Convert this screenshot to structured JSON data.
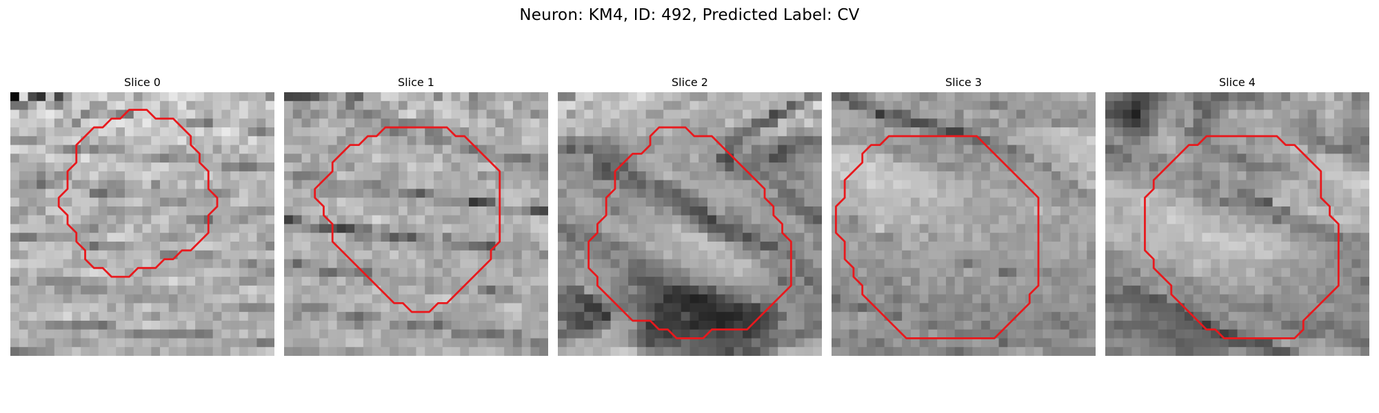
{
  "figure": {
    "title": "Neuron: KM4, ID: 492, Predicted Label: CV",
    "contour_color": "#e8191d"
  },
  "panels": [
    {
      "title": "Slice 0",
      "pixels": "CN9JL8NFmdLHzd2zs9GXuMXU5tPd1LrDxrWrtbmHcnOk06ODstbTmJrQ3sG50NmqvuOls7XFzLrYwbXc3KrK2+fWq8uAnrKfgHXQ1c+ivM/bu6XGr8nYu7e7y8fNxNSgwIXQ3NDd5dvB58i51auIjXK1t8aur5q/tcvCqsO0s7+8vNnSqNzPzL/Uz8HH3b3Z6dq2jXiVko6LocjFz9ihwaW+s8GztNLJzOCpt8G30Myv38DE3dTF0bOhhXecgJmSlbLCycW1oZ3EscSbwabRxbXHmbG7udnNyr7iwLjIsqaxn5F+jp2QmKu/qbqZpsHDtK6tnrLBqsG4utC+0cnEt9PXv8DBsrCvg4dzdpOUt6Chg6qOk8e61LWtqMfK2My7uqukrNK5qcO2u8e4qo2Wa46fxJeetJuMkKuuy4e6q8urzqnBra2+u6e8oaKkqMzBw8e6cmqPhaSsraOtrLGeoZCGj6XLuai3yKWbqaytpMfIxqO5u8bNs6mMl4qspqKuqcjOtrWxmpGqlM3Qy7nHrpyQlqOhl6i7xLaxta6trKmdl4mWlajEwJmxy8OpoKC0m7S8o8nNrbCKiWqjsJqNqbDDzL/Av7Wzs52Vgq2dsM+kyq7FqKW5maaoqKu9vayhgnN3nZWbmJ2quLDX1szBp6qYj5yhwrOtvcixxZqoqMm+uMi6xbOWbI+RjKKxs6O6vrPE0NDHwKevr6WEm6O/yMTHzKPDvce1qbq+wbCAfaWnjIqhubi2xLfF1cbOzMLCraGlrKm/srywzbeyuqejp6CxnrOTfaWYr6XCqq+nw7rN2dPDv6W+l6ipraevucfFwruvo5qEiqi5kIaJhoqjnqe+pbyitcDF2sTLp76nn6+Pj6WmubKho7qTjKSJiIyqnqKjlq2ftJ6ur7SjrKTK08G8prSorrGtmq+wp7qtrZWPm5ickauhrbu/yMKvxqvHvKyqvL22x8DAyL+bv6LAz7q+mqupsqC1oKGGg4ePrbnJucLH2LLMqL+5tKm+pZK1sL+6q7GWuK/Ep6mpu5uppImDjHh+fm6Mu8G60s3CvavGpKW3o6GkoLOyvMOks7OxrZ62wKudoY56hIaFfn+HdnyqvK3GqcSvqrusppSso5Kbpbi0wbevurCktL2pr6mynqGZm3Z8cX2GjpOws8WxrLi8rZ+wsJe9qa6coJqsocCtt8HMqcm7l36Mq52YkYmMtKKqnZSTva3C1b+2oaS1rLqknqa3rLOsn6y4vca8pqKvkJSjrayhq5eDlpC1ibChsLa8qqSUkq28uqmprJ6xoq6zua2lwbm5uq+3tLa4rZGYjqSVm6Kuv52MrJigmaSvu7qlvLqXg7DQwbKhhZqnu6i/rLK3uqyvvLirpq+hnJabr6mtrpmqtrmvsbe3k5upsLa/wLagi5KmtLWYvqCkpr6jr7S2waaRk56lo8GzpaibqraxvqSjt6mzpbGsr7SajZixu63Ao8KqpqK1pqWxwqSYlLCkvKyyq6GsuLW4uq2utaCcn6e7x6SzoK+pwqSnuKzBzLmtsLm7w6Cwpqq/v6uov8OmrL2epLqtpaWovaKps6vDtKC8p6iinJzBvMa+ubTGv8DCyMTAt7+3uKzDsrjAu66vsq2nqcC7r76oqa2ny7W+yLe+2MnOwKjQxM7Gwr7GrrK+uLbGuqazubLDs9LZxNG8uMG2sdHGssS/07rR1b/XvbTPqcS5pci2vcLGxLbCyrKfsri73su7t7y2ucjYsbzC3dbEvcStzM++w7+5w7HGzMrBtcnCrKbBtM66wr28wsTBzbnTy8PFy7TE1LfMvbbHvrXUu7S/xLu0yMe6wrrLqczBs8m4pbXBzdTCw9bR1MvKxq7Gwbq40b7Zxcm42bq/vMTAt8DDxczO2cvExNbJz7q8vsfRxsnQtb/Rxci9vMnGrbLCycbNvr2wub6ns8fJzsTEz8DOzcHCxs7Ry8+6w7/L0Ma0xr+4usbTwcG50LbFycrNvbuwrMjJv7++zw==",
      "outline": [
        [
          13.5,
          2
        ],
        [
          15.5,
          2
        ],
        [
          16.5,
          3
        ],
        [
          18.5,
          3
        ],
        [
          20.5,
          5
        ],
        [
          20.5,
          6
        ],
        [
          21.5,
          7
        ],
        [
          21.5,
          8
        ],
        [
          22.5,
          9
        ],
        [
          22.5,
          11
        ],
        [
          23.5,
          12
        ],
        [
          23.5,
          13
        ],
        [
          22.5,
          14
        ],
        [
          22.5,
          16
        ],
        [
          20.5,
          18
        ],
        [
          19.5,
          18
        ],
        [
          18.5,
          19
        ],
        [
          17.5,
          19
        ],
        [
          16.5,
          20
        ],
        [
          14.5,
          20
        ],
        [
          13.5,
          21
        ],
        [
          11.5,
          21
        ],
        [
          10.5,
          20
        ],
        [
          9.5,
          20
        ],
        [
          8.5,
          19
        ],
        [
          8.5,
          18
        ],
        [
          7.5,
          17
        ],
        [
          7.5,
          16
        ],
        [
          6.5,
          15
        ],
        [
          6.5,
          14
        ],
        [
          5.5,
          13
        ],
        [
          5.5,
          12
        ],
        [
          6.5,
          11
        ],
        [
          6.5,
          9
        ],
        [
          7.5,
          8
        ],
        [
          7.5,
          6
        ],
        [
          8.5,
          5
        ],
        [
          9.5,
          4
        ],
        [
          10.5,
          4
        ],
        [
          11.5,
          3
        ],
        [
          12.5,
          3
        ]
      ]
    },
    {
      "title": "Slice 1",
      "pixels": "Q0ZIV32ZsWxfrKzW0r+zrL6Cx6HEgZ+bs6ivoZiksJaTs6m6nXCjtq6aupPFy7XSzcKqiZqvu9GSprKwroSgiZq2ipqMeYadnM7bqpm/1MfFnLuUoMSnr4eapK6OpsKqq7qYl6iAkHyBjJO0s7PNtMq/k5uxwc6zo7i2vbzDvZKop52RdYWjs3qBraCQtbqixJ2mu7+6pqOfq7e7k6C2p8itpLCPq4V+h6aYo7iyp6KnzMe5vLusrKmSn7bDs7ioq7Wqu7iavqCHbIeVrq2ttbSqkJC+mrmkpKqnrM+/tLy6qqjGnbmwr5KYlXp2bJSJwLWcmKq1opC7sqqhmbHPvMXMs5eutsjKrZOjkZaAm3l6gZCcyb+zsrOXl6m8tryjrrCmuIyflaqop6CQvZGqq5SLlJ6Vh32WnLHBs8GvqbOnqLHDn7SmvqKqr7O8nZGRlpuUo42HoIF0V36foqqnsLOlvcbAvMOotaGoqb+szcC+sayvp7CbtKmUkYqNNEdhp8THsparoau7v8WlucLHp6aooMKgqr6xsbahsbqkmJKbhk5GPmegtZK7n7KmvNjHtqG6xqKsm5ykrrS0wKu/s8i5m5yPd1lWPEp7cqWOsJyjsay1xbe0qbG7p7eprsnMqcC7s6/CwJqBh5h5WXFWh5izeqafqq+htLeZn7XBs8DFp6mpuaerlri3nLKpmJKqk4SDbWlSnZuZn5W7taa7sqq6o63AwKOuyq2/rKKxnq+6tqaXkZ+RtqaFkmSOnaG4l5+nlquysLCrw6GSraa+vq+zprGhr6itmaafnHBohYt3bKWTpbOltaaymrW1tqC3rrqWqKi2tq3Ct5mtwaCwhqeqnJuXqJKfr5ytr6qzr6+6sb6+vauhqLWvnbOrscaonrm9tI+dqJ2ZtYNmlYWtu56kuKK1qbC0u7XAwaWvn6qmp8PIz625qrOnk5WYrKSipZKAf4Sjt7qgqbjCqbu1pKi2qKCnnZ6pu8vLq6SYp4mrlaaykHlphI6wr6StpLKMm6KioaiwrbjEpqmym6Ktuq/Anp2Bn6+wh5RvgIpliJmgpJyZp7u0paqgrayruaOysb23pb+gpqOcrJagtXl/iXlrc5h5o7Cqr6Kho7qxsMbIrLKgo7C1sqy2o5+gl6mgmpqAm3h/kY2Uk6mln4+Xo6yvm6ahv6qpvryluLm+tZ2WrI6BhbGzgq6Kcn1+hJGaoLeWl6Knpq+8ubHAuLGeqay3o6WSmY2ZjJbAnaSooJV/o4iOprOzl6OpsK2lrLOquZqSl7mxsqqqmJuBjZKpxJKyl5WUoJe0l4Kar6SmrpWfpJuQq6ejq6W0pp+sqImYa6GWt8ilmJSKh5iPqaGemZOTkq6qpZu6mpqipq2gmqSnmoqYoY+YoKKmoqSeb4aBgrXDhYB9tJWkh6Cwl4ulhZSxr6+4mq2Yl5qclJadsJi3pIq8qdKVmq62oqKQmJ+kmqqroZqZuZeUp52HmZCopLOnqcu7qJiTmavBwbXBqqOkrIuXp5+lkJSnnZ+cnKWyn6atsbKrnZyjn6WOh6q0ra+rtJKmraPJkqqopaSrrp2lsbi2wbG5op+Ml5+1n62jucrBt7Kmp7qvlJKulKmvtbnCvbXBoMOptMG3zNKbrqy2yazHwb2tpb2ovaGwoqrHs6/JwbXAvaHKvMOjqcy1ptLHvcnCv9Cjv7u4lqSmtLyhv7SXpbe6srjAr6ioucO+uKrCx7TUzrzGrqTDxdPUurWwt6ajpqOxtLO3q8PCsszBuq7HsLrCtMLBwce9y8DTs8/Nx62uuaKgnq6lrbyzuKS1rbe2zcfJy8C52ryvxMu5xZurw8SlpbaGj5aEsrecpbu7qbKzx7K/tbSwvMC6x8a5ybrD1Lujo6mRnYqAdnB+jaq+rLSymqaWtsW6w8S+rb2zyLy7wM63nJy2o8GhkIlodWWLm5yRo6SrnbKrubi7xce9yNXC2bDH2JyptaSRh5x6fWpaWVA=",
      "outline": [
        [
          11.5,
          4
        ],
        [
          18.5,
          4
        ],
        [
          19.5,
          5
        ],
        [
          20.5,
          5
        ],
        [
          21.5,
          6
        ],
        [
          22.5,
          7
        ],
        [
          23.5,
          8
        ],
        [
          24.5,
          9
        ],
        [
          24.5,
          17
        ],
        [
          23.5,
          18
        ],
        [
          23.5,
          19
        ],
        [
          22.5,
          20
        ],
        [
          21.5,
          21
        ],
        [
          20.5,
          22
        ],
        [
          19.5,
          23
        ],
        [
          18.5,
          24
        ],
        [
          17.5,
          24
        ],
        [
          16.5,
          25
        ],
        [
          14.5,
          25
        ],
        [
          13.5,
          24
        ],
        [
          12.5,
          24
        ],
        [
          11.5,
          23
        ],
        [
          9.5,
          21
        ],
        [
          8.5,
          20
        ],
        [
          7.5,
          19
        ],
        [
          6.5,
          18
        ],
        [
          5.5,
          17
        ],
        [
          5.5,
          15
        ],
        [
          4.5,
          14
        ],
        [
          4.5,
          13
        ],
        [
          3.5,
          12
        ],
        [
          3.5,
          11
        ],
        [
          4.5,
          10
        ],
        [
          5.5,
          9
        ],
        [
          5.5,
          8
        ],
        [
          6.5,
          7
        ],
        [
          7.5,
          6
        ],
        [
          8.5,
          6
        ],
        [
          9.5,
          5
        ],
        [
          10.5,
          5
        ]
      ]
    },
    {
      "title": "Slice 2",
      "pixels": "foLS2L62s7/Q4cu4wrmrmJa7rqatwsK3vLOvt3F/19zDpbTMu9POwLu6mZaqyrywrLS4r6+/p7Jcfa7d0ZS1zbfBy7auvZiXu7u/rqiisKuhyLGoRV2UyaqTwca8s67Dq7qstLWssa6YraKhmsWwnmVcaMe4qs+xvqXEr7Sin7KqvqStvKihmo6qqJh6bHu2t8WdjpqmlHiJgo2Bkp+pmpKQqJ+fmZ+hi21olZ+nlHt6bGVwdFeBX3h8dY+bl5Cqqaagq6SWmmN/n3eCeUtgdoZ+kJOQoGdsaXWLp7GunZ6Tt5WaU0SMgHV4S1N5kImNjYZ/mGNObVqEoKOtrZGXoKOTg1h/dG6JgX2Bj5ijjJiSjmdVW39cc5anu66qkpmXpI6Cbn1vhJqAeY+bpo2Qi5udlWxvXn1idoiqraenoqyhpZqXd3OUnYqZhqWkm4B9pY6IdoZnbF13i6eurquuo4+fo21piZqUmpqvq6WOjJKamYZ/dGdfa3iiqp6lqqKNfX5vc5iXk4+kq6GYd4+foKmJm3pfT0yOp4aUlKaclpZ9Z2RwiaGUl5WspJqSpaKgnqWRc1U/eIV8kaeanJ6olW1Ya3WCjZStprCdo6WvrsGjmXVbVlllhn+KlJyapoqFhmeGcW+KlqeuppqprbTDw8KMhVxrS2mNiXqGgqSJoIR2hoh/b3yPmrOqraSxscXCv6ebdnpUVoiFjJp/i4KjiX90ko+Fi5efuKatta6+rbmdl4WgiYBrhpydkZmFn5WOd5BvaX2Ak5atr6iuvbW/v6aIhpOUbnucjY2hmZqcloVoa3R0g36Kn6KosKy/ramljoSPaYB+lZGolJGahoNhVVNYbnhzj4yal6ikpqKilmR6k2J6fmNkqZmehHaMc1lVRjZCSWRUhHyGjJCOk4+HfJJzZGxKSHCQgntpZltXLzQtIiY6SV1weJmBh5KAj4aHbWlqOjltd3F6X1A4Q0ArMDAuPUA1SUBlYJSVinl6XFRGZVA1k5WBcGNEODVXOCooJCUpOjhEWGeWkXuCi11JRGp0p6GgbDU6PD43KTQyJDFBNjtLXJGXlHlvZHBzeYm1qqCCYEtGOkpDUEtPQEpSN0hdeXp/aXSAiJ2zqrKrqKGHZkpgWlRvYl1dVFdUW3VgZIF6kaSuqbOuuKy1xs3El4R5g3xxYGVgV0dsUlZwibK5tLK5r7WxtLyxq67AuL23rI6GeY6YgnKLmoWdoa6+sqOxtLy8uLe8raQ=",
      "outline": [
        [
          11.5,
          4
        ],
        [
          14.5,
          4
        ],
        [
          15.5,
          5
        ],
        [
          17.5,
          5
        ],
        [
          18.5,
          6
        ],
        [
          19.5,
          7
        ],
        [
          20.5,
          8
        ],
        [
          21.5,
          9
        ],
        [
          22.5,
          10
        ],
        [
          23.5,
          11
        ],
        [
          23.5,
          12
        ],
        [
          24.5,
          13
        ],
        [
          24.5,
          14
        ],
        [
          25.5,
          15
        ],
        [
          25.5,
          16
        ],
        [
          26.5,
          17
        ],
        [
          26.5,
          22
        ],
        [
          25.5,
          23
        ],
        [
          24.5,
          24
        ],
        [
          23.5,
          25
        ],
        [
          22.5,
          26
        ],
        [
          21.5,
          27
        ],
        [
          17.5,
          27
        ],
        [
          16.5,
          28
        ],
        [
          13.5,
          28
        ],
        [
          12.5,
          27
        ],
        [
          11.5,
          27
        ],
        [
          10.5,
          26
        ],
        [
          8.5,
          26
        ],
        [
          7.5,
          25
        ],
        [
          6.5,
          24
        ],
        [
          5.5,
          23
        ],
        [
          4.5,
          22
        ],
        [
          4.5,
          21
        ],
        [
          3.5,
          20
        ],
        [
          3.5,
          17
        ],
        [
          4.5,
          16
        ],
        [
          4.5,
          15
        ],
        [
          5.5,
          14
        ],
        [
          5.5,
          12
        ],
        [
          6.5,
          11
        ],
        [
          6.5,
          9
        ],
        [
          7.5,
          8
        ],
        [
          8.5,
          7
        ],
        [
          9.5,
          7
        ],
        [
          10.5,
          6
        ],
        [
          10.5,
          5
        ]
      ]
    },
    {
      "title": "Slice 3",
      "pixels": "aFNvgpiyqK+fl4aNpKuVm6CkjqKaoayenKWurb2il5lZZXyOoZSkj6ybn6WamJKNdH+eoZiWopibl6Seqq2pnoc4a1lpkqGkq6SCs6agtaKbfZmbkaSUlYWfoa2ppq2Ve3dhSk1eiZeFoY2Jgq6PnJWhpYOOi6Cds52WnpWPrZqaqIl9Y0NCeYaqmpebrru4vsLMw62ulZOclKaRnKWinIeIkaKBfGRnhZa0s62ruMC7vcDSvL/BuqWfkoSJmpqNmJuHpIaLfIRsiqqupbS5w8O9ydTCw7DHupKhlZSLqaaaiIyfl5KCjn2ypaOzx7y/zb3JytXAtMa/t6Oji4aNnKKMrZeHmqaQfbSyoLbGu9HDwMzBycPCwsO3rLCXqZeWpaWnnpyloYGlrrujt6SxwNXMvdHMwsO+prmxtZ6wnJ2PoauioZSUgbTDu76tscLBvsC7wMTIr7y0tp2js7Klo5mpn5yImoOWrLa5rLm3ub3DpMGtvb23nKmpn6S0pLGqpZGQqpmVsquru7fFu7i1rLC0r6mroaWpnJubsKfCqbehnq2nlZ6Bo7C2vq2sx7mtuKCpqZ6fmbKjrqGlrpuSrqmtnpGKma3MpaWysJWpsq28n6+Yr6+nlJ+clZuqoq2ppaCdopiHg52yoriQpKKzm7ankZecmaKomJOsmKmfppqtkqWYl5i0sJmqqKmpp6+ulaSdmaGgqqypnbGSnJuhm5ulmqWNnqSrq6Sal5qZnpWkoaycoqeumKeJk6WVjZKJn6GdqaOeo56JcYyZnJiXnZmco56SmpqUjpaMpo6WkpWMjKanmKSQr6GWnGdzl5yOgZOJjJSgk4aXiZOKeYmsiKKTpoehjJGWqZ+Wp56dl4iTj52ggYyZn5eJl4OKmqSRm4yiiYqeko6kl5eYpJWPmJSGZYqQmouehHKFiZ6Dg4mHg5+Km4eflYuHm4+Lo5iVd4V2Y3iFjYSfkXeBlZCFjoh4lJCPjZiPkZWVmpiFm52PrJ+Pd2ibmpKJj4t7gZeUh5Z7j5WMgHKKfY+QmaaepJSSmZ+fjYFvf3+RnYhvjo+Nh4h9iH1uh4SKk5J5kZCaj4yRn4aijod0eHx+eHWNlIuKl5KTdYCUd42Hk3pvi56Jl36GnJKPlaGYmGKDf4t8fIyMk52hmJaGfX6FeYCJhpOIhHRoe4iLhpigqZ6nhn+Dg4ODfYmEhqKbo4qUiZOKZGuAk5SAeYF4n35tkZiPj5mSrqJ+d4KKlJiHhI6akIuHgX94dXmPg4OEnGaYfISPnJyRnqGfnZeCf4KNk3t6jHiEjHl1hYyhiomXlZx+d5WSnZuhjJ2bopeDnJOalGtybnpsenyImIaSnZmgtaSkkpuZm56hkYymoJWnp6aal3tleX6BdWmEhZh3j5+Orrijj6KrppSVi5ublqmal56el5Oed3B0eWlthWhyjoGQpImdsqOtmKyql5+UrKKQp5qmnZ+VlZSHgHyKeYh6fnGIk5uloKagpbSvrqeqn5abqa61nZikkqaXiYaQmJhmjH+Bh5ibrJuUvqOrpaisrbOvqKmyqJ6ssKajopOGfpKSmIeAmZKNkZqdlqWunaqso7mroLKmrqeio5OptaSXoKChooqAoo2OqJiKoJmeqaCttLO7o6+7mqyvtbWor6ejtJ2kobajoZKIm4+jn5+cq62osamyqaukqbGirqurp665qqioo5qmpaCfkZWcjKaVpJCwo5+nsq+mtKqirq24q5+rp5mzqKCeraKYqA==",
      "outline": [
        [
          6.5,
          5
        ],
        [
          16.5,
          5
        ],
        [
          17.5,
          6
        ],
        [
          18.5,
          7
        ],
        [
          19.5,
          8
        ],
        [
          20.5,
          9
        ],
        [
          21.5,
          10
        ],
        [
          22.5,
          11
        ],
        [
          23.5,
          12
        ],
        [
          23.5,
          22
        ],
        [
          22.5,
          23
        ],
        [
          22.5,
          24
        ],
        [
          21.5,
          25
        ],
        [
          20.5,
          26
        ],
        [
          19.5,
          27
        ],
        [
          18.5,
          28
        ],
        [
          8.5,
          28
        ],
        [
          7.5,
          27
        ],
        [
          6.5,
          26
        ],
        [
          5.5,
          25
        ],
        [
          4.5,
          24
        ],
        [
          3.5,
          23
        ],
        [
          3.5,
          22
        ],
        [
          2.5,
          21
        ],
        [
          2.5,
          20
        ],
        [
          1.5,
          19
        ],
        [
          1.5,
          17
        ],
        [
          0.5,
          16
        ],
        [
          0.5,
          13
        ],
        [
          1.5,
          12
        ],
        [
          1.5,
          10
        ],
        [
          2.5,
          9
        ],
        [
          3.5,
          8
        ],
        [
          3.5,
          7
        ],
        [
          4.5,
          6
        ],
        [
          5.5,
          6
        ]
      ]
    },
    {
      "title": "Slice 4",
      "pixels": "enVfSkpfb4mbhnJ8YmB8bmt5mZN9qaHCrMSWqnaCYU9ONEpoh5aYm19odoGTgZN+k5Gon5ucm7O5m4GOUEg3IFx5jaOQo4Ved5a2o7iwvZ+drZWDqsKjnpCZc2JIOlV9pJp/pGl+jKCdp6WooaObj4l+n6ypjY6TkX9qaGKCsqKfcWV1lKGhl6i1rbSZmoODkq6biX+Ah5yBd5Cmsr2glIF8mqOmq4qgmKqkpI2Bcoygf4BwY3GJlJSkrbSclZyHfI+GopqmpK6rwbiIl3R0anyHgoBtlZKOgJyxp5OPkId4ao2UqpOcqp2sxLe5lomDjX2Nipx3lJaalYWenauSh3V2gHyKpqa3vr/BqJqXnJ+ek6aUo5+KjnyOj6WZrIiUnKCTkaSzusjIv8W/wreqm56Wl4+TpZeNeaKPj5KWmKS3vbSYqqu3yc7Vv7++vLzDuLCYnoR/jqWTcHifpaq5rLqtpqm4r8e4rqyst8uzr6S6uaGGlW+BgnVjUr+9qLmqmqSzqLm7uaK5wL+2vMrAtrShnquUmIGEg4Jtp7XIvrqmuLKmsqaysbi/udLJwLm4vaazoqSVmGuJjImVq6/HxL6rvLe5rrqzwLu8xry1vaywu6S3paesg394fImqsqywt8C5nbq+v7q5yLvSy8u9vMrBv7ymk5yVhnltjYGMnrKzqrK+vLasr7e6t8nOzLzIt8C8qqSXnpmShJOGhoqYo7C6qbmyqbKwvL+6vbXHyLmtr6OsnpOFjouPhpKYoZ+fppynrMW9qLimpqqpp5ublqGfnImUknaJiJmNgKaajoqmrLuwnq+mp7ylmZ6slZKejJqThJWPd3mSmImIm5qThJOeqp+zoq2sqYyYnZWXjpeakYNteYdhXHuXo4yIl4WVkKihl5Wwnp+Mk6aNmIiUmoN/YWdlY2BSW5GOgJeJjICLlJiUgpSPkpSegX6Ji4+TfG9+c2NjYmNRdoKVkpiCfn2Bc42JjI+UmZ2PinyIkIGKc2x2aGdgTWh0j3+hnpOPhoOUhJGBj32JlpCRdWRpZ2VmdWxhX1c5Z4yDmIyTo5NxaneCcm17jH+Id39wgnJwY15sb2lkUj1Ld4GPlpaUj3JseJN3c3iGjJOLioZ3cGtdY2Zna2RWVF1QUpGrm5OcqJKMfnFqeXWCkIWAgX1kYnBxc3mXlX56Y1RXeqOprKKupJh+amxiZXBcZmlwY1ZpeXiMpK/FtpRzYHWMmqSrs6qzrbm0qp+ajHl8eXuCh5CXnp6uuLq+x7+3o5Oah5aOjqOhr7a+xrm9tKi0taimoKe0sLiuucTItsfB0bnFxbm3qpqfo5mmu7C2u8CtqbXBvrjGvLu3yrnIwMTI0dTGwNbBuLusuqyjpa+xx8S+v8OkraqxwLvBvMC9ysfGu8THzsLFybm7yLS8r66Xo6q/vLGzqbCttbizwsTTrcLLv6/Lw8jMy8jIsr28vbCusJynrMWsr7uwqbyvvbu+wa3FvMLKxcTIxMLGv8bB0rysvbOzmpCSkqSrrbu5vLLAwcy9ur25xL/Jt8fEtLm6wsC7wsO8p7uhnpOLinKLhpqmp5+tv8S1xLy/r8Sys8G+xsy8v7+8wMO6sqinpKWhj4B1doiJnZ+pwbKts6+5q7Sxw7zFs73DtsXEv7S6sa+lnqC1nKE=",
      "outline": [
        [
          11.5,
          5
        ],
        [
          19.5,
          5
        ],
        [
          20.5,
          6
        ],
        [
          21.5,
          6
        ],
        [
          22.5,
          7
        ],
        [
          23.5,
          8
        ],
        [
          24.5,
          9
        ],
        [
          24.5,
          12
        ],
        [
          25.5,
          13
        ],
        [
          25.5,
          14
        ],
        [
          26.5,
          15
        ],
        [
          26.5,
          22
        ],
        [
          25.5,
          23
        ],
        [
          24.5,
          24
        ],
        [
          23.5,
          25
        ],
        [
          22.5,
          26
        ],
        [
          22.5,
          27
        ],
        [
          21.5,
          28
        ],
        [
          13.5,
          28
        ],
        [
          12.5,
          27
        ],
        [
          11.5,
          27
        ],
        [
          10.5,
          26
        ],
        [
          9.5,
          25
        ],
        [
          7.5,
          23
        ],
        [
          7.5,
          22
        ],
        [
          6.5,
          21
        ],
        [
          5.5,
          20
        ],
        [
          5.5,
          19
        ],
        [
          4.5,
          18
        ],
        [
          4.5,
          12
        ],
        [
          5.5,
          11
        ],
        [
          5.5,
          10
        ],
        [
          6.5,
          9
        ],
        [
          7.5,
          8
        ],
        [
          8.5,
          7
        ],
        [
          9.5,
          6
        ],
        [
          10.5,
          6
        ]
      ]
    }
  ]
}
